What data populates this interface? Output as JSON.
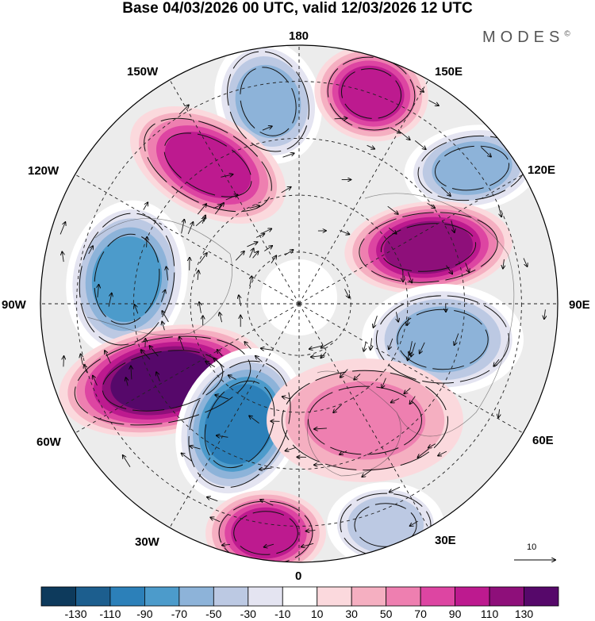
{
  "header": {
    "title": "Base 04/03/2026 00 UTC, valid 12/03/2026 12 UTC",
    "brand": "MODES",
    "brand_mark": "©"
  },
  "map": {
    "longitude_labels": {
      "lon_180": "180",
      "lon_150e": "150E",
      "lon_120e": "120E",
      "lon_90e": "90E",
      "lon_60e": "60E",
      "lon_30e": "30E",
      "lon_0": "0",
      "lon_30w": "30W",
      "lon_60w": "60W",
      "lon_90w": "90W",
      "lon_120w": "120W",
      "lon_150w": "150W"
    },
    "anomaly_centers": [
      {
        "name": "anomaly-north-pacific-1",
        "value": -60,
        "sign": "negative"
      },
      {
        "name": "anomaly-bering",
        "value": 75,
        "sign": "positive"
      },
      {
        "name": "anomaly-alaska",
        "value": 70,
        "sign": "positive"
      },
      {
        "name": "anomaly-kamchatka",
        "value": -55,
        "sign": "negative"
      },
      {
        "name": "anomaly-siberia",
        "value": 100,
        "sign": "positive"
      },
      {
        "name": "anomaly-canada",
        "value": -65,
        "sign": "negative"
      },
      {
        "name": "anomaly-central-asia",
        "value": -60,
        "sign": "negative"
      },
      {
        "name": "anomaly-us-atlantic",
        "value": 115,
        "sign": "positive"
      },
      {
        "name": "anomaly-north-atlantic",
        "value": -85,
        "sign": "negative"
      },
      {
        "name": "anomaly-europe",
        "value": 35,
        "sign": "positive"
      },
      {
        "name": "anomaly-azores",
        "value": 65,
        "sign": "positive"
      },
      {
        "name": "anomaly-mediterranean",
        "value": -40,
        "sign": "negative"
      }
    ]
  },
  "legend": {
    "vector_reference": "10",
    "colorbar": {
      "colors": [
        "#0d3a5c",
        "#1c5e8e",
        "#2c80b9",
        "#4c9bcb",
        "#8db3d9",
        "#bcc9e3",
        "#e4e4f1",
        "#ffffff",
        "#fbd9dd",
        "#f5afc1",
        "#ee7fb0",
        "#dd45a2",
        "#bd1a8f",
        "#8e0f7a",
        "#56086a"
      ],
      "labels": [
        "-130",
        "-110",
        "-90",
        "-70",
        "-50",
        "-30",
        "-10",
        "10",
        "30",
        "50",
        "70",
        "90",
        "110",
        "130"
      ]
    }
  }
}
